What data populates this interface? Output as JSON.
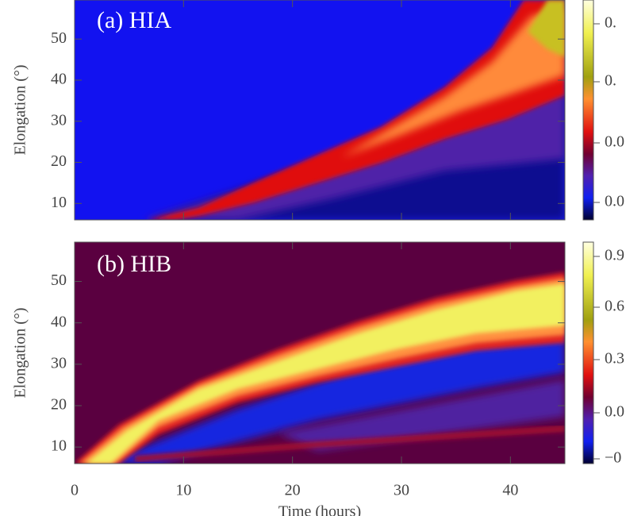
{
  "chart_data": [
    {
      "type": "heatmap",
      "title": "(a) HIA",
      "y_label": "Elongation (°)",
      "xlim": [
        0,
        45
      ],
      "xticks": [
        0,
        10,
        20,
        30,
        40
      ],
      "ylim": [
        6,
        59.5
      ],
      "yticks": [
        10,
        20,
        30,
        40,
        50
      ],
      "colorbar_labels": [
        "0.",
        "0.",
        "0.0",
        "0.0"
      ]
    },
    {
      "type": "heatmap",
      "title": "(b) HIB",
      "y_label": "Elongation (°)",
      "x_label": "Time (hours)",
      "xlim": [
        0,
        45
      ],
      "xticks": [
        0,
        10,
        20,
        30,
        40
      ],
      "ylim": [
        6,
        59.5
      ],
      "yticks": [
        10,
        20,
        30,
        40,
        50
      ],
      "colorbar_labels": [
        "0.9",
        "0.6",
        "0.3",
        "0.0",
        "−0"
      ]
    }
  ]
}
